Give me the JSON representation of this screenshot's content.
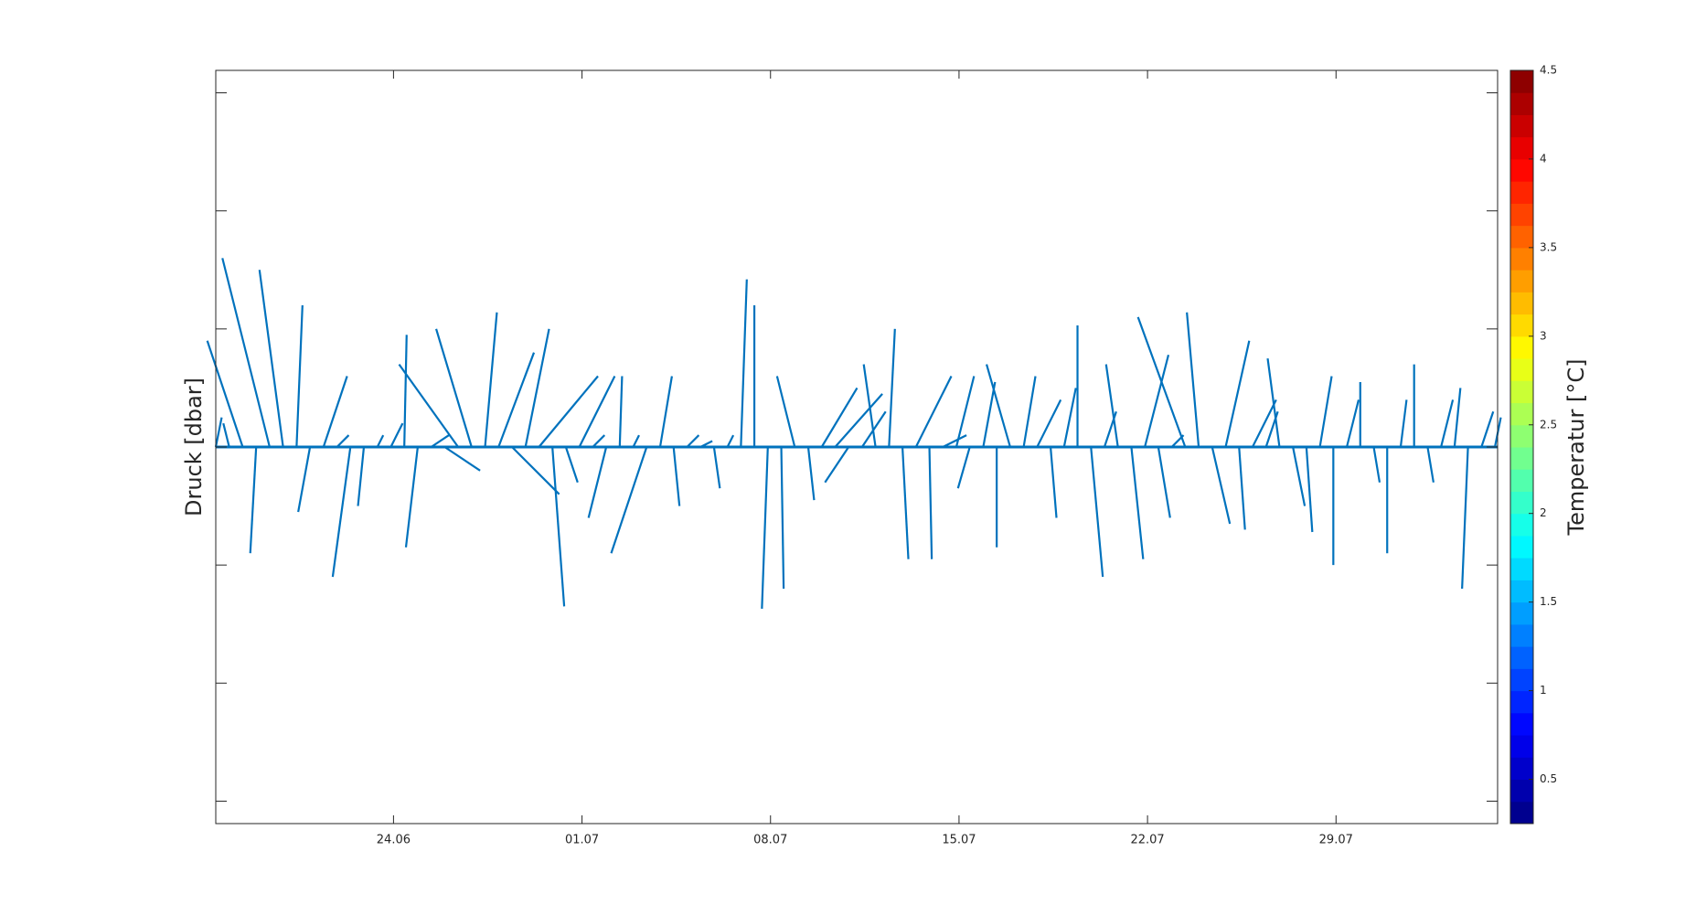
{
  "chart_data": {
    "type": "feather",
    "ylabel": "Druck [dbar]",
    "colorbar_label": "Temperatur [°C]",
    "color": "#0072bd",
    "xlim": [
      0,
      47.6
    ],
    "xticks": [
      {
        "value": 6.6,
        "label": "24.06"
      },
      {
        "value": 13.6,
        "label": "01.07"
      },
      {
        "value": 20.6,
        "label": "08.07"
      },
      {
        "value": 27.6,
        "label": "15.07"
      },
      {
        "value": 34.6,
        "label": "22.07"
      },
      {
        "value": 41.6,
        "label": "29.07"
      }
    ],
    "ylim": [
      -3.19,
      3.19
    ],
    "yticks": [
      -3,
      -2,
      -1,
      0,
      1,
      2,
      3
    ],
    "clim": [
      0.25,
      4.5
    ],
    "cticks": [
      0.5,
      1,
      1.5,
      2,
      2.5,
      3,
      3.5,
      4,
      4.5
    ],
    "x": [
      0,
      0.5,
      1,
      1.5,
      2,
      2.5,
      3,
      3.5,
      4,
      4.5,
      5,
      5.5,
      6,
      6.5,
      7,
      7.5,
      8,
      8.5,
      9,
      9.5,
      10,
      10.5,
      11,
      11.5,
      12,
      12.5,
      13,
      13.5,
      14,
      14.5,
      15,
      15.5,
      16,
      16.5,
      17,
      17.5,
      18,
      18.5,
      19,
      19.5,
      20,
      20.5,
      21,
      21.5,
      22,
      22.5,
      23,
      23.5,
      24,
      24.5,
      25,
      25.5,
      26,
      26.5,
      27,
      27.5,
      28,
      28.5,
      29,
      29.5,
      30,
      30.5,
      31,
      31.5,
      32,
      32.5,
      33,
      33.5,
      34,
      34.5,
      35,
      35.5,
      36,
      36.5,
      37,
      37.5,
      38,
      38.5,
      39,
      39.5,
      40,
      40.5,
      41,
      41.5,
      42,
      42.5,
      43,
      43.5,
      44,
      44.5,
      45,
      45.5,
      46,
      46.5,
      47,
      47.5
    ],
    "u": [
      0.05,
      -0.05,
      -0.3,
      -0.05,
      -0.4,
      -0.2,
      0.05,
      -0.1,
      0.2,
      0.1,
      -0.15,
      -0.05,
      0.05,
      0.1,
      0.02,
      -0.1,
      0.15,
      0.3,
      -0.5,
      -0.3,
      0.1,
      0.3,
      0.4,
      0.2,
      0.5,
      0.1,
      0.1,
      0.3,
      0.1,
      -0.15,
      0.02,
      0.05,
      -0.3,
      0.1,
      0.05,
      0.1,
      0.1,
      0.05,
      0.05,
      0.05,
      0,
      -0.05,
      0.02,
      -0.15,
      0.05,
      0.3,
      0.4,
      -0.2,
      0.2,
      -0.1,
      0.05,
      0.05,
      0.3,
      0.02,
      0.2,
      0.15,
      -0.1,
      0.1,
      0,
      -0.2,
      0.1,
      0.2,
      0.05,
      0.1,
      0,
      0.1,
      0.1,
      -0.1,
      0.1,
      0.2,
      0.1,
      0.1,
      -0.4,
      -0.1,
      0.15,
      0.2,
      0.05,
      0.2,
      0.1,
      -0.1,
      0.1,
      0.05,
      0.1,
      0,
      0.1,
      0,
      0.05,
      0,
      0.05,
      0,
      0.05,
      0.1,
      0.05,
      -0.05,
      0.1,
      0.05
    ],
    "v": [
      0.25,
      0.2,
      0.9,
      -0.9,
      1.6,
      1.5,
      1.2,
      -0.55,
      0.6,
      0.1,
      -1.1,
      -0.5,
      0.1,
      0.2,
      0.95,
      -0.85,
      0.1,
      -0.2,
      0.7,
      1.0,
      1.14,
      0.8,
      -0.4,
      1.0,
      0.6,
      -1.35,
      -0.3,
      0.6,
      0.1,
      -0.6,
      0.6,
      0.1,
      -0.9,
      0.6,
      -0.5,
      0.1,
      0.05,
      -0.35,
      0.1,
      1.42,
      1.2,
      -1.37,
      -1.2,
      0.6,
      -0.45,
      0.5,
      0.45,
      -0.3,
      0.3,
      0.7,
      1.0,
      -0.95,
      0.6,
      -0.95,
      0.1,
      0.6,
      -0.35,
      0.55,
      -0.85,
      0.7,
      0.6,
      0.4,
      -0.6,
      0.5,
      1.03,
      -1.1,
      0.3,
      0.7,
      -0.95,
      0.78,
      -0.6,
      0.1,
      1.1,
      1.14,
      -0.65,
      0.9,
      -0.7,
      0.4,
      0.3,
      0.75,
      -0.5,
      -0.72,
      0.6,
      -1.0,
      0.4,
      0.55,
      -0.3,
      -0.9,
      0.4,
      0.7,
      -0.3,
      0.4,
      0.5,
      -1.2,
      0.3,
      0.25
    ]
  }
}
